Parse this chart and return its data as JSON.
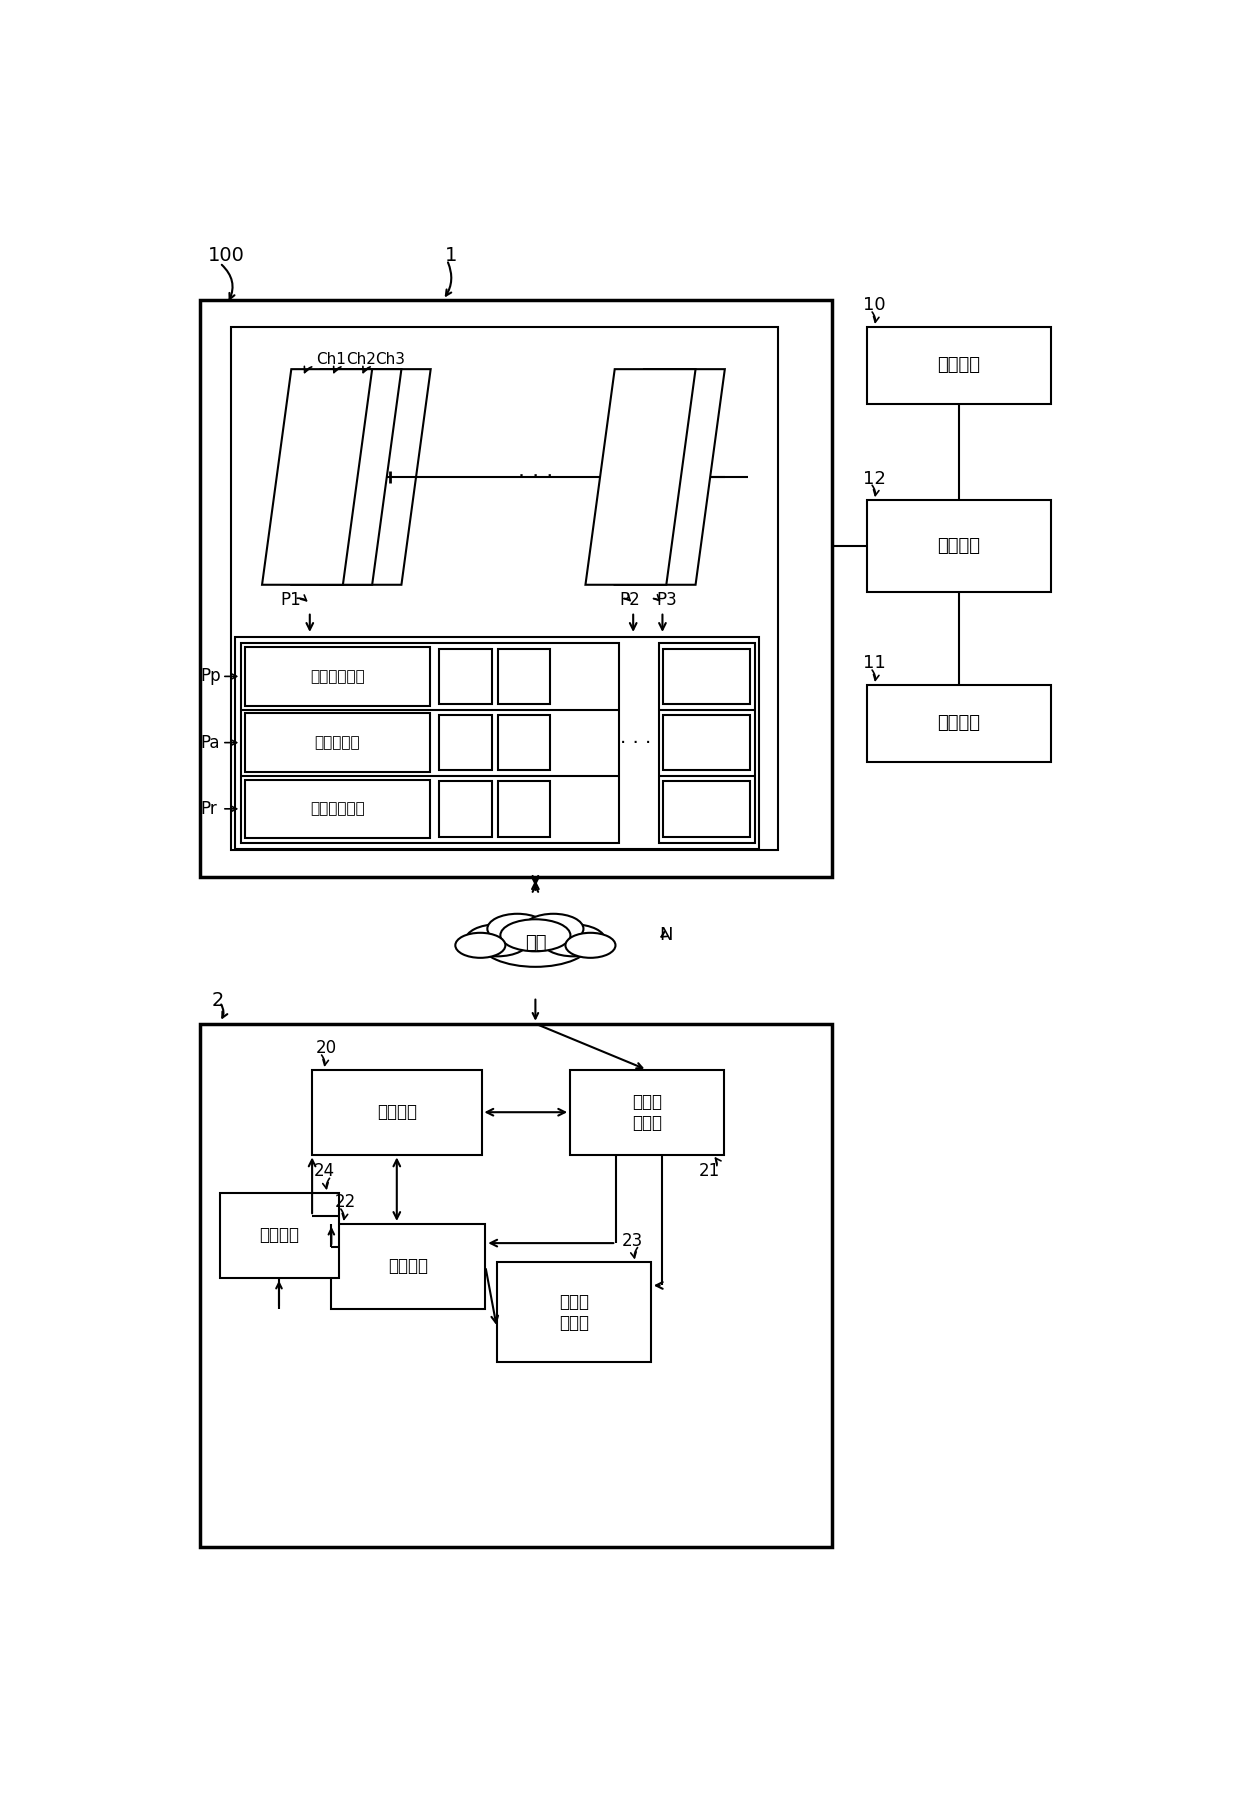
{
  "bg_color": "#ffffff",
  "line_color": "#000000",
  "fig_width": 12.4,
  "fig_height": 17.93,
  "labels": {
    "mem": "记忆单元",
    "login": "登入构件",
    "proc": "处理单元",
    "multimedia": "多媒体播放区",
    "visitor": "访客互动区",
    "admin": "管理者回复区",
    "network": "网络",
    "proc2": "处理单元",
    "platform": "平台连\n结机构",
    "switch": "切换机构",
    "program": "节目播\n放机构",
    "input": "输入机构"
  }
}
